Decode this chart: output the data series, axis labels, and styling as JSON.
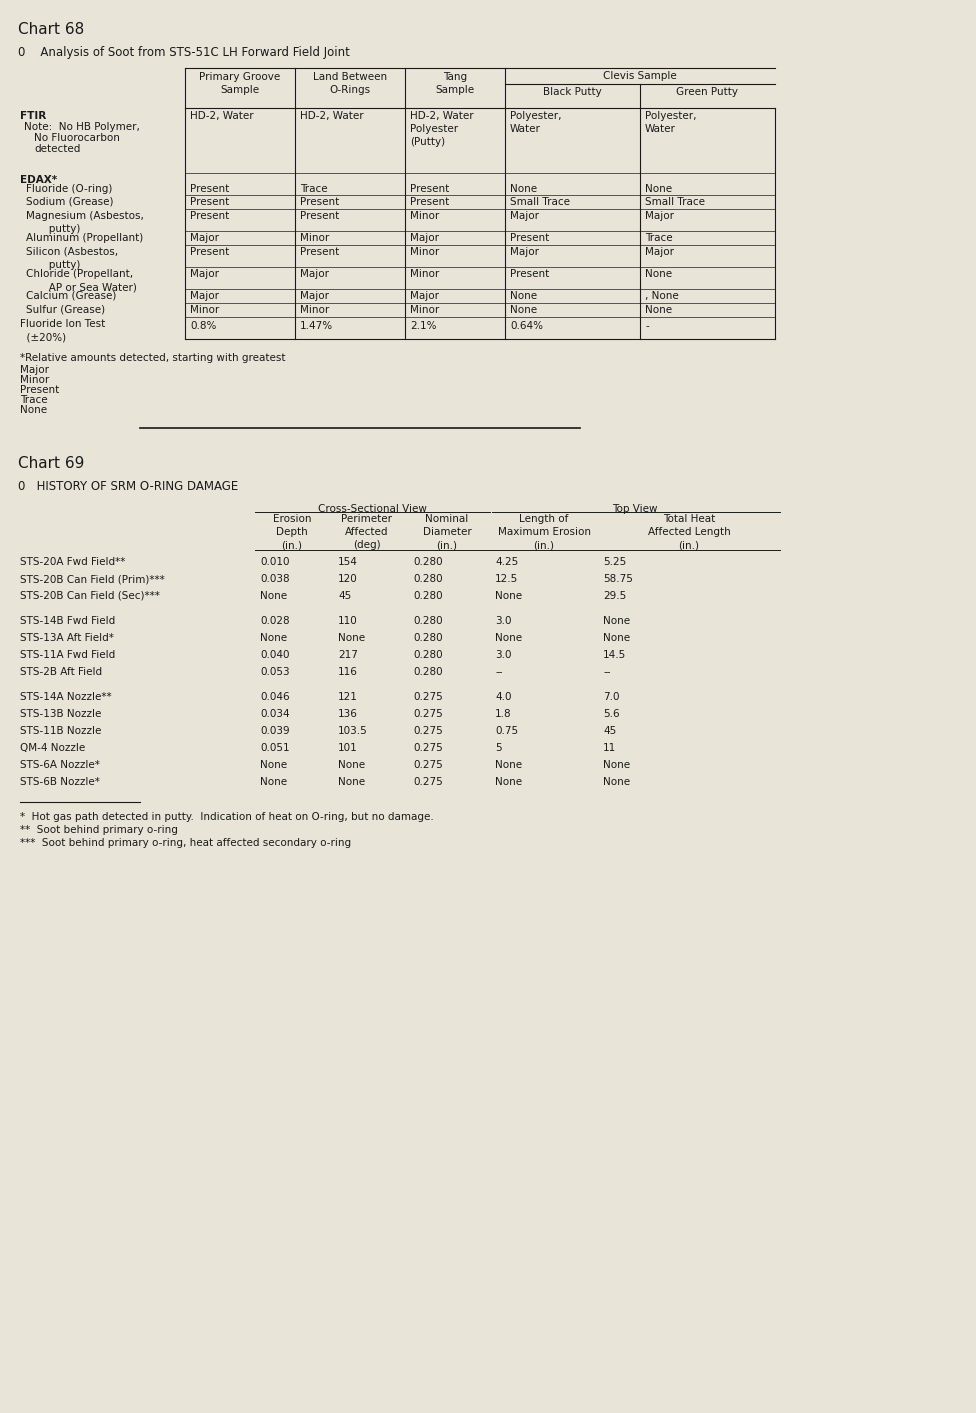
{
  "chart68_title": "Chart 68",
  "chart68_subtitle": "0    Analysis of Soot from STS-51C LH Forward Field Joint",
  "chart69_title": "Chart 69",
  "chart69_subtitle": "0   HISTORY OF SRM O-RING DAMAGE",
  "chart69_col_group1": "Cross-Sectional View",
  "chart69_col_group2": "Top View",
  "chart69_col_headers": [
    "Erosion\nDepth\n(in.)",
    "Perimeter\nAffected\n(deg)",
    "Nominal\nDiameter\n(in.)",
    "Length of\nMaximum Erosion\n(in.)",
    "Total Heat\nAffected Length\n(in.)"
  ],
  "chart69_rows": [
    [
      "STS-20A Fwd Field**",
      "0.010",
      "154",
      "0.280",
      "4.25",
      "5.25"
    ],
    [
      "STS-20B Can Field (Prim)***",
      "0.038",
      "120",
      "0.280",
      "12.5",
      "58.75"
    ],
    [
      "STS-20B Can Field (Sec)***",
      "None",
      "45",
      "0.280",
      "None",
      "29.5"
    ],
    [
      "",
      "",
      "",
      "",
      "",
      ""
    ],
    [
      "STS-14B Fwd Field",
      "0.028",
      "110",
      "0.280",
      "3.0",
      "None"
    ],
    [
      "STS-13A Aft Field*",
      "None",
      "None",
      "0.280",
      "None",
      "None"
    ],
    [
      "STS-11A Fwd Field",
      "0.040",
      "217",
      "0.280",
      "3.0",
      "14.5"
    ],
    [
      "STS-2B Aft Field",
      "0.053",
      "116",
      "0.280",
      "--",
      "--"
    ],
    [
      "",
      "",
      "",
      "",
      "",
      ""
    ],
    [
      "STS-14A Nozzle**",
      "0.046",
      "121",
      "0.275",
      "4.0",
      "7.0"
    ],
    [
      "STS-13B Nozzle",
      "0.034",
      "136",
      "0.275",
      "1.8",
      "5.6"
    ],
    [
      "STS-11B Nozzle",
      "0.039",
      "103.5",
      "0.275",
      "0.75",
      "45"
    ],
    [
      "QM-4 Nozzle",
      "0.051",
      "101",
      "0.275",
      "5",
      "11"
    ],
    [
      "STS-6A Nozzle*",
      "None",
      "None",
      "0.275",
      "None",
      "None"
    ],
    [
      "STS-6B Nozzle*",
      "None",
      "None",
      "0.275",
      "None",
      "None"
    ]
  ],
  "chart69_footnote_lines": [
    "*  Hot gas path detected in putty.  Indication of heat on O-ring, but no damage.",
    "**  Soot behind primary o-ring",
    "***  Soot behind primary o-ring, heat affected secondary o-ring"
  ],
  "bg_color": "#e8e4d8",
  "text_color": "#1a1a1a",
  "line_color": "#1a1a1a"
}
